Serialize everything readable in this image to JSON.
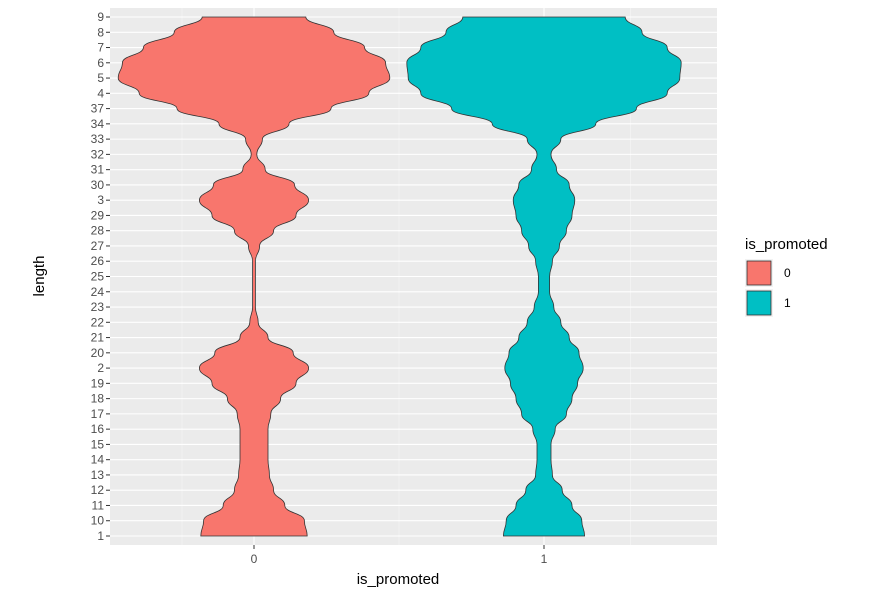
{
  "chart_data": {
    "type": "violin",
    "xlabel": "is_promoted",
    "ylabel": "length",
    "categories": [
      "0",
      "1"
    ],
    "y_categories": [
      "1",
      "10",
      "11",
      "12",
      "13",
      "14",
      "15",
      "16",
      "17",
      "18",
      "19",
      "2",
      "20",
      "21",
      "22",
      "23",
      "24",
      "25",
      "26",
      "27",
      "28",
      "29",
      "3",
      "30",
      "31",
      "32",
      "33",
      "34",
      "37",
      "4",
      "5",
      "6",
      "7",
      "8",
      "9"
    ],
    "grid": true,
    "legend": {
      "title": "is_promoted",
      "position": "right",
      "entries": [
        {
          "label": "0",
          "color": "#F8766D"
        },
        {
          "label": "1",
          "color": "#00BFC4"
        }
      ]
    },
    "series": [
      {
        "group": "0",
        "color": "#F8766D",
        "density_profile": [
          {
            "y": "1",
            "density": 0.38
          },
          {
            "y": "10",
            "density": 0.36
          },
          {
            "y": "11",
            "density": 0.22
          },
          {
            "y": "12",
            "density": 0.14
          },
          {
            "y": "13",
            "density": 0.11
          },
          {
            "y": "14",
            "density": 0.1
          },
          {
            "y": "15",
            "density": 0.1
          },
          {
            "y": "16",
            "density": 0.1
          },
          {
            "y": "17",
            "density": 0.12
          },
          {
            "y": "18",
            "density": 0.19
          },
          {
            "y": "19",
            "density": 0.3
          },
          {
            "y": "2",
            "density": 0.39
          },
          {
            "y": "20",
            "density": 0.28
          },
          {
            "y": "21",
            "density": 0.1
          },
          {
            "y": "22",
            "density": 0.03
          },
          {
            "y": "23",
            "density": 0.01
          },
          {
            "y": "24",
            "density": 0.01
          },
          {
            "y": "25",
            "density": 0.01
          },
          {
            "y": "26",
            "density": 0.01
          },
          {
            "y": "27",
            "density": 0.04
          },
          {
            "y": "28",
            "density": 0.14
          },
          {
            "y": "29",
            "density": 0.3
          },
          {
            "y": "3",
            "density": 0.39
          },
          {
            "y": "30",
            "density": 0.29
          },
          {
            "y": "31",
            "density": 0.08
          },
          {
            "y": "32",
            "density": 0.02
          },
          {
            "y": "33",
            "density": 0.06
          },
          {
            "y": "34",
            "density": 0.25
          },
          {
            "y": "37",
            "density": 0.55
          },
          {
            "y": "4",
            "density": 0.82
          },
          {
            "y": "5",
            "density": 0.97
          },
          {
            "y": "6",
            "density": 0.94
          },
          {
            "y": "7",
            "density": 0.79
          },
          {
            "y": "8",
            "density": 0.57
          },
          {
            "y": "9",
            "density": 0.37
          }
        ]
      },
      {
        "group": "1",
        "color": "#00BFC4",
        "density_profile": [
          {
            "y": "1",
            "density": 0.29
          },
          {
            "y": "10",
            "density": 0.27
          },
          {
            "y": "11",
            "density": 0.2
          },
          {
            "y": "12",
            "density": 0.13
          },
          {
            "y": "13",
            "density": 0.06
          },
          {
            "y": "14",
            "density": 0.05
          },
          {
            "y": "15",
            "density": 0.05
          },
          {
            "y": "16",
            "density": 0.08
          },
          {
            "y": "17",
            "density": 0.16
          },
          {
            "y": "18",
            "density": 0.2
          },
          {
            "y": "19",
            "density": 0.24
          },
          {
            "y": "2",
            "density": 0.28
          },
          {
            "y": "20",
            "density": 0.25
          },
          {
            "y": "21",
            "density": 0.18
          },
          {
            "y": "22",
            "density": 0.12
          },
          {
            "y": "23",
            "density": 0.07
          },
          {
            "y": "24",
            "density": 0.04
          },
          {
            "y": "25",
            "density": 0.04
          },
          {
            "y": "26",
            "density": 0.06
          },
          {
            "y": "27",
            "density": 0.11
          },
          {
            "y": "28",
            "density": 0.16
          },
          {
            "y": "29",
            "density": 0.2
          },
          {
            "y": "3",
            "density": 0.22
          },
          {
            "y": "30",
            "density": 0.18
          },
          {
            "y": "31",
            "density": 0.09
          },
          {
            "y": "32",
            "density": 0.05
          },
          {
            "y": "33",
            "density": 0.12
          },
          {
            "y": "34",
            "density": 0.37
          },
          {
            "y": "37",
            "density": 0.66
          },
          {
            "y": "4",
            "density": 0.88
          },
          {
            "y": "5",
            "density": 0.97
          },
          {
            "y": "6",
            "density": 0.98
          },
          {
            "y": "7",
            "density": 0.88
          },
          {
            "y": "8",
            "density": 0.7
          },
          {
            "y": "9",
            "density": 0.58
          }
        ]
      }
    ]
  }
}
